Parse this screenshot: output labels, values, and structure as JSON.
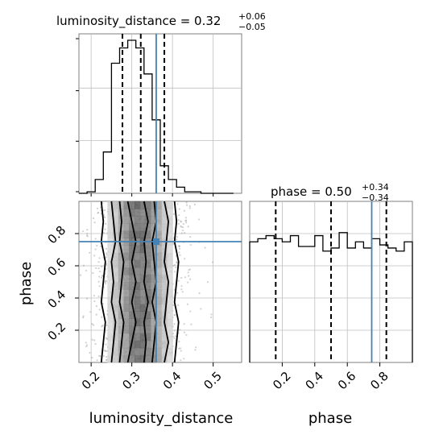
{
  "chart_data": {
    "type": "corner",
    "colors": {
      "truth": "#4682b4",
      "hist": "#000000",
      "grid": "#bfbfbf",
      "quantile": "#000000",
      "density": "#555555"
    },
    "parameters": [
      {
        "name": "luminosity_distance",
        "xlabel": "luminosity_distance",
        "title_main": "luminosity_distance = 0.32",
        "title_plus": "+0.06",
        "title_minus": "−0.05",
        "range": [
          0.17,
          0.57
        ],
        "ticks": [
          0.2,
          0.3,
          0.4,
          0.5
        ],
        "tick_labels": [
          "0.2",
          "0.3",
          "0.4",
          "0.5"
        ],
        "quantiles": [
          0.277,
          0.322,
          0.38
        ],
        "truth": 0.36
      },
      {
        "name": "phase",
        "xlabel": "phase",
        "ylabel": "phase",
        "title_main": "phase = 0.50",
        "title_plus": "+0.34",
        "title_minus": "−0.34",
        "range": [
          0.0,
          1.0
        ],
        "ticks": [
          0.2,
          0.4,
          0.6,
          0.8
        ],
        "tick_labels": [
          "0.2",
          "0.4",
          "0.6",
          "0.8"
        ],
        "quantiles": [
          0.16,
          0.5,
          0.84
        ],
        "truth": 0.75
      }
    ],
    "hist_1d_luminosity_distance": {
      "bin_edges": [
        0.17,
        0.19,
        0.21,
        0.23,
        0.25,
        0.27,
        0.29,
        0.31,
        0.33,
        0.35,
        0.37,
        0.39,
        0.41,
        0.43,
        0.45,
        0.47,
        0.49,
        0.51,
        0.53,
        0.55
      ],
      "counts": [
        0.0,
        0.01,
        0.09,
        0.27,
        0.85,
        0.95,
        1.0,
        0.95,
        0.78,
        0.48,
        0.18,
        0.09,
        0.04,
        0.01,
        0.01,
        0.0,
        0.0,
        0.0,
        0.0
      ],
      "ymax": 1.0
    },
    "hist_1d_phase": {
      "bin_edges": [
        0.0,
        0.05,
        0.1,
        0.15,
        0.2,
        0.25,
        0.3,
        0.35,
        0.4,
        0.45,
        0.5,
        0.55,
        0.6,
        0.65,
        0.7,
        0.75,
        0.8,
        0.85,
        0.9,
        0.95,
        1.0
      ],
      "counts": [
        0.78,
        0.8,
        0.82,
        0.8,
        0.78,
        0.82,
        0.75,
        0.75,
        0.82,
        0.72,
        0.74,
        0.84,
        0.74,
        0.78,
        0.74,
        0.8,
        0.76,
        0.74,
        0.72,
        0.78
      ],
      "ymax": 1.0
    },
    "density_2d": {
      "x_range": [
        0.17,
        0.57
      ],
      "y_range": [
        0.0,
        1.0
      ],
      "center_x": 0.32,
      "spread_x": 0.045,
      "contours": [
        {
          "level": 1,
          "left": [
            0.29,
            0.3,
            0.31,
            0.3,
            0.31,
            0.3,
            0.31,
            0.3,
            0.29
          ],
          "right": [
            0.33,
            0.335,
            0.33,
            0.34,
            0.33,
            0.335,
            0.33,
            0.34,
            0.33
          ]
        },
        {
          "level": 2,
          "left": [
            0.27,
            0.275,
            0.28,
            0.27,
            0.275,
            0.28,
            0.27,
            0.275,
            0.27
          ],
          "right": [
            0.35,
            0.355,
            0.36,
            0.35,
            0.36,
            0.355,
            0.35,
            0.36,
            0.355
          ]
        },
        {
          "level": 3,
          "left": [
            0.25,
            0.255,
            0.26,
            0.25,
            0.255,
            0.25,
            0.26,
            0.255,
            0.25
          ],
          "right": [
            0.38,
            0.39,
            0.38,
            0.385,
            0.39,
            0.38,
            0.385,
            0.39,
            0.38
          ]
        },
        {
          "level": 4,
          "left": [
            0.225,
            0.23,
            0.235,
            0.225,
            0.23,
            0.235,
            0.225,
            0.23,
            0.225
          ],
          "right": [
            0.405,
            0.41,
            0.415,
            0.405,
            0.41,
            0.415,
            0.405,
            0.41,
            0.405
          ]
        }
      ]
    }
  }
}
